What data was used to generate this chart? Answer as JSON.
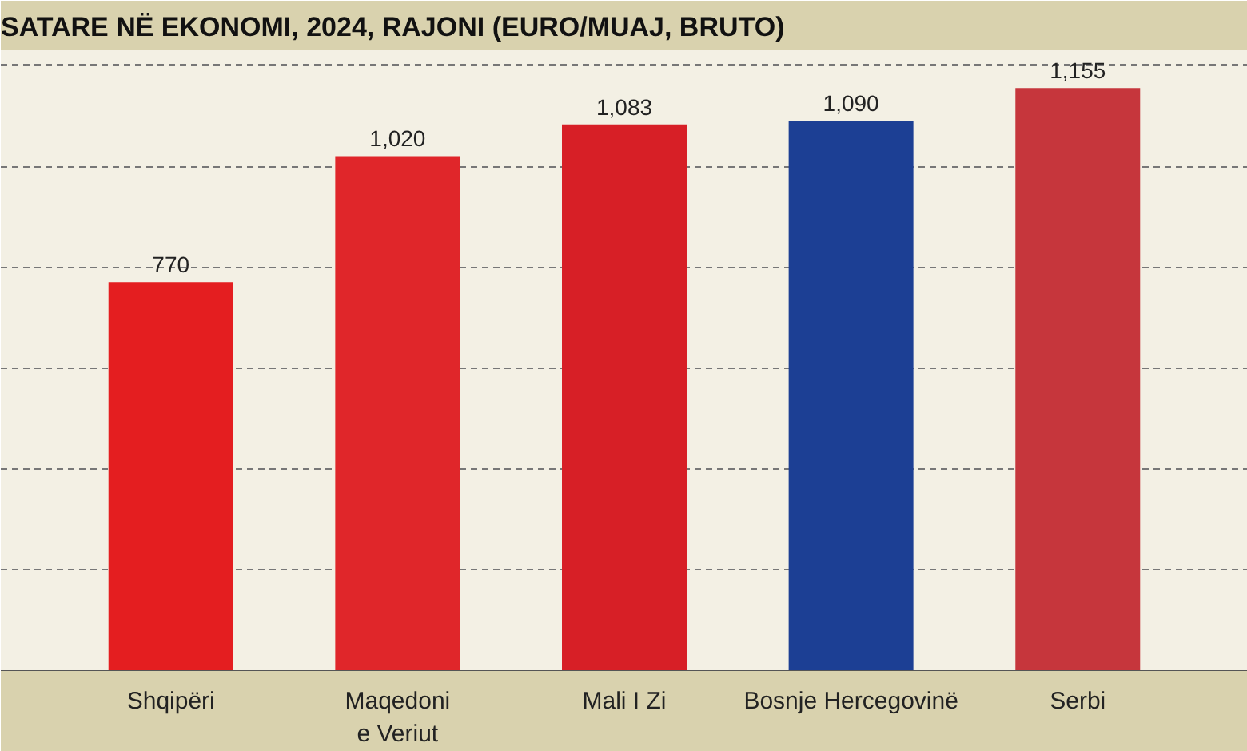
{
  "chart_data": {
    "type": "bar",
    "title": "SATARE NË EKONOMI, 2024, RAJONI (EURO/MUAJ, BRUTO)",
    "categories": [
      "Shqipëri",
      "Maqedoni\ne Veriut",
      "Mali I Zi",
      "Bosnje Hercegovinë",
      "Serbi"
    ],
    "values": [
      770,
      1020,
      1083,
      1090,
      1155
    ],
    "colors": [
      "#e41e20",
      "#e0262a",
      "#d71f26",
      "#1c3f94",
      "#c6363c"
    ],
    "ylim": [
      0,
      1230
    ],
    "yticks": [
      {
        "value": 200,
        "label": null
      },
      {
        "value": 400,
        "label": null
      },
      {
        "value": 600,
        "label": null
      },
      {
        "value": 800,
        "label": null
      },
      {
        "value": 1000,
        "label": null
      },
      {
        "value": 1200,
        "label": null
      }
    ],
    "value_labels": [
      "770",
      "1,020",
      "1,083",
      "1,090",
      "1,155"
    ],
    "grid": "y",
    "tick_labels": "x"
  }
}
